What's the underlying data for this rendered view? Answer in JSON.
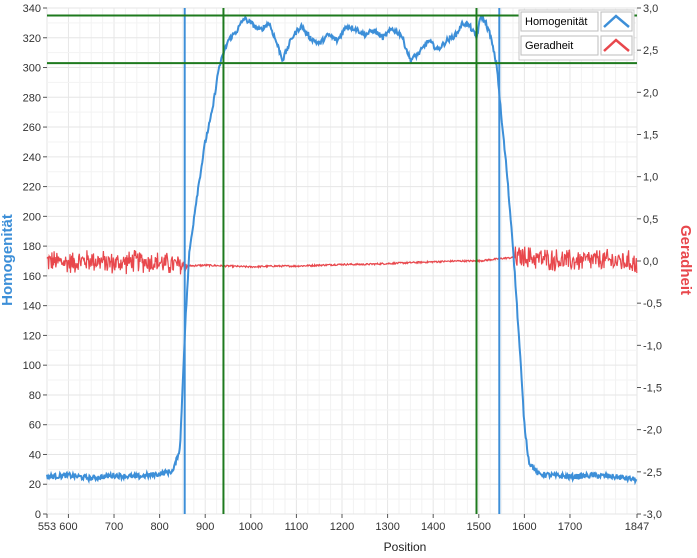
{
  "chart_data": {
    "type": "line",
    "xlabel": "Position",
    "ylabel_left": "Homogenität",
    "ylabel_right": "Geradheit",
    "xlim": [
      553,
      1847
    ],
    "ylim_left": [
      0,
      340
    ],
    "ylim_right": [
      -3.0,
      3.0
    ],
    "x_ticks": [
      553,
      600,
      700,
      800,
      900,
      1000,
      1100,
      1200,
      1300,
      1400,
      1500,
      1600,
      1700,
      1847
    ],
    "y_left_ticks": [
      0,
      20,
      40,
      60,
      80,
      100,
      120,
      140,
      160,
      180,
      200,
      220,
      240,
      260,
      280,
      300,
      320,
      340
    ],
    "y_right_ticks": [
      "-3,0",
      "-2,5",
      "-2,0",
      "-1,5",
      "-1,0",
      "-0,5",
      "0,0",
      "0,5",
      "1,0",
      "1,5",
      "2,0",
      "2,5",
      "3,0"
    ],
    "y_right_values": [
      -3.0,
      -2.5,
      -2.0,
      -1.5,
      -1.0,
      -0.5,
      0.0,
      0.5,
      1.0,
      1.5,
      2.0,
      2.5,
      3.0
    ],
    "grid": true,
    "legend_position": "top-right",
    "series": [
      {
        "name": "Homogenität",
        "axis": "left",
        "color": "#3d8fd8",
        "x": [
          553,
          600,
          650,
          700,
          750,
          800,
          830,
          845,
          855,
          865,
          880,
          900,
          915,
          930,
          950,
          970,
          985,
          1000,
          1020,
          1040,
          1055,
          1070,
          1090,
          1110,
          1130,
          1150,
          1170,
          1190,
          1210,
          1230,
          1250,
          1270,
          1290,
          1310,
          1330,
          1350,
          1370,
          1390,
          1410,
          1430,
          1450,
          1465,
          1480,
          1495,
          1505,
          1515,
          1525,
          1540,
          1550,
          1560,
          1575,
          1590,
          1600,
          1610,
          1630,
          1660,
          1700,
          1750,
          1800,
          1847
        ],
        "y": [
          25,
          26,
          24,
          26,
          25,
          27,
          29,
          45,
          120,
          175,
          210,
          250,
          270,
          300,
          318,
          325,
          333,
          330,
          325,
          330,
          318,
          305,
          320,
          328,
          320,
          316,
          322,
          318,
          328,
          326,
          322,
          325,
          320,
          326,
          322,
          305,
          310,
          318,
          312,
          318,
          322,
          330,
          328,
          320,
          335,
          330,
          322,
          300,
          265,
          235,
          180,
          110,
          60,
          35,
          27,
          26,
          25,
          26,
          25,
          23
        ]
      },
      {
        "name": "Geradheit",
        "axis": "right",
        "color": "#e8474c",
        "x": [
          553,
          600,
          650,
          700,
          750,
          800,
          850,
          900,
          950,
          1000,
          1050,
          1100,
          1150,
          1200,
          1250,
          1300,
          1350,
          1400,
          1450,
          1500,
          1550,
          1600,
          1650,
          1700,
          1750,
          1800,
          1847
        ],
        "y": [
          0.0,
          -0.02,
          0.01,
          -0.03,
          0.0,
          -0.02,
          -0.06,
          -0.05,
          -0.06,
          -0.07,
          -0.06,
          -0.06,
          -0.05,
          -0.04,
          -0.04,
          -0.03,
          -0.02,
          -0.01,
          0.0,
          0.0,
          0.03,
          0.05,
          0.02,
          0.0,
          0.01,
          0.0,
          -0.02
        ],
        "noise_range_x": [
          [
            553,
            860
          ],
          [
            1580,
            1847
          ]
        ],
        "noise_amplitude": 0.12
      }
    ],
    "cursors": [
      {
        "axis": "x",
        "value": 855,
        "color": "#3d8fd8"
      },
      {
        "axis": "x",
        "value": 940,
        "color": "#1e7a1e"
      },
      {
        "axis": "x",
        "value": 1495,
        "color": "#1e7a1e"
      },
      {
        "axis": "x",
        "value": 1545,
        "color": "#3d8fd8"
      },
      {
        "axis": "y",
        "value": 335,
        "color": "#1e7a1e"
      },
      {
        "axis": "y",
        "value": 303,
        "color": "#1e7a1e"
      }
    ],
    "legend": [
      "Homogenität",
      "Geradheit"
    ]
  }
}
